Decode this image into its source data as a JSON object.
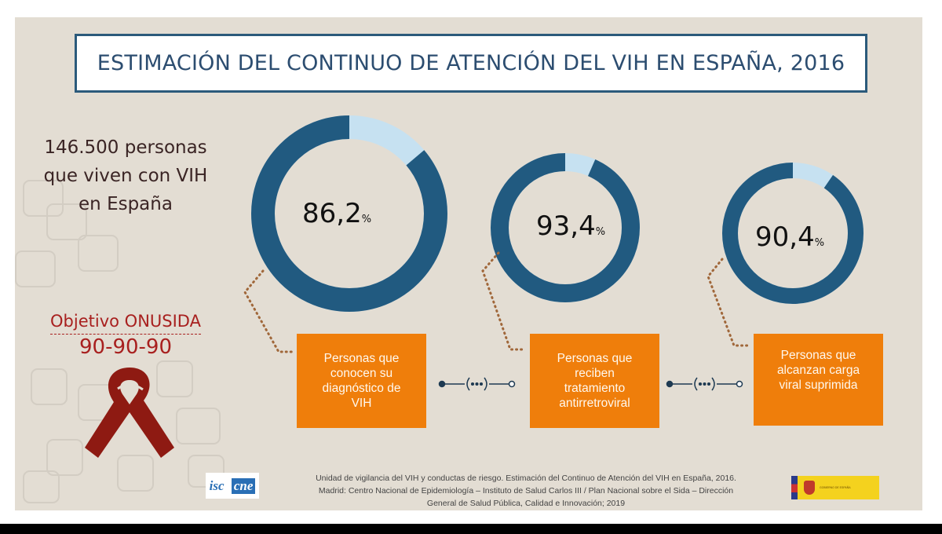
{
  "title": "ESTIMACIÓN DEL CONTINUO DE ATENCIÓN DEL VIH EN ESPAÑA, 2016",
  "people": {
    "line1": "146.500 personas",
    "line2": "que viven con VIH",
    "line3": "en España"
  },
  "objective": {
    "label": "Objetivo ONUSIDA",
    "target": "90-90-90",
    "icon": "red-ribbon-icon"
  },
  "colors": {
    "donut_dark": "#215a80",
    "donut_light": "#c6e1f1",
    "box": "#ef7e0b",
    "objective": "#a8201f",
    "title": "#2c4d70"
  },
  "chart_data": {
    "type": "pie",
    "variant": "donut",
    "series": [
      {
        "value": 86.2,
        "label": "86,2",
        "unit": "%",
        "caption": "Personas que conocen su diagnóstico de VIH"
      },
      {
        "value": 93.4,
        "label": "93,4",
        "unit": "%",
        "caption": "Personas que reciben tratamiento antirretroviral"
      },
      {
        "value": 90.4,
        "label": "90,4",
        "unit": "%",
        "caption": "Personas que alcanzan carga viral suprimida"
      }
    ]
  },
  "footer": {
    "line1": "Unidad de vigilancia del VIH y conductas de riesgo. Estimación del Continuo de Atención del VIH en España, 2016.",
    "line2": "Madrid: Centro Nacional de Epidemiología – Instituto de Salud Carlos III / Plan Nacional sobre el Sida – Dirección",
    "line3": "General de Salud Pública, Calidad e Innovación; 2019"
  },
  "logos": {
    "isciii": "isc",
    "cne": "cne",
    "gobierno": "GOBIERNO DE ESPAÑA"
  }
}
